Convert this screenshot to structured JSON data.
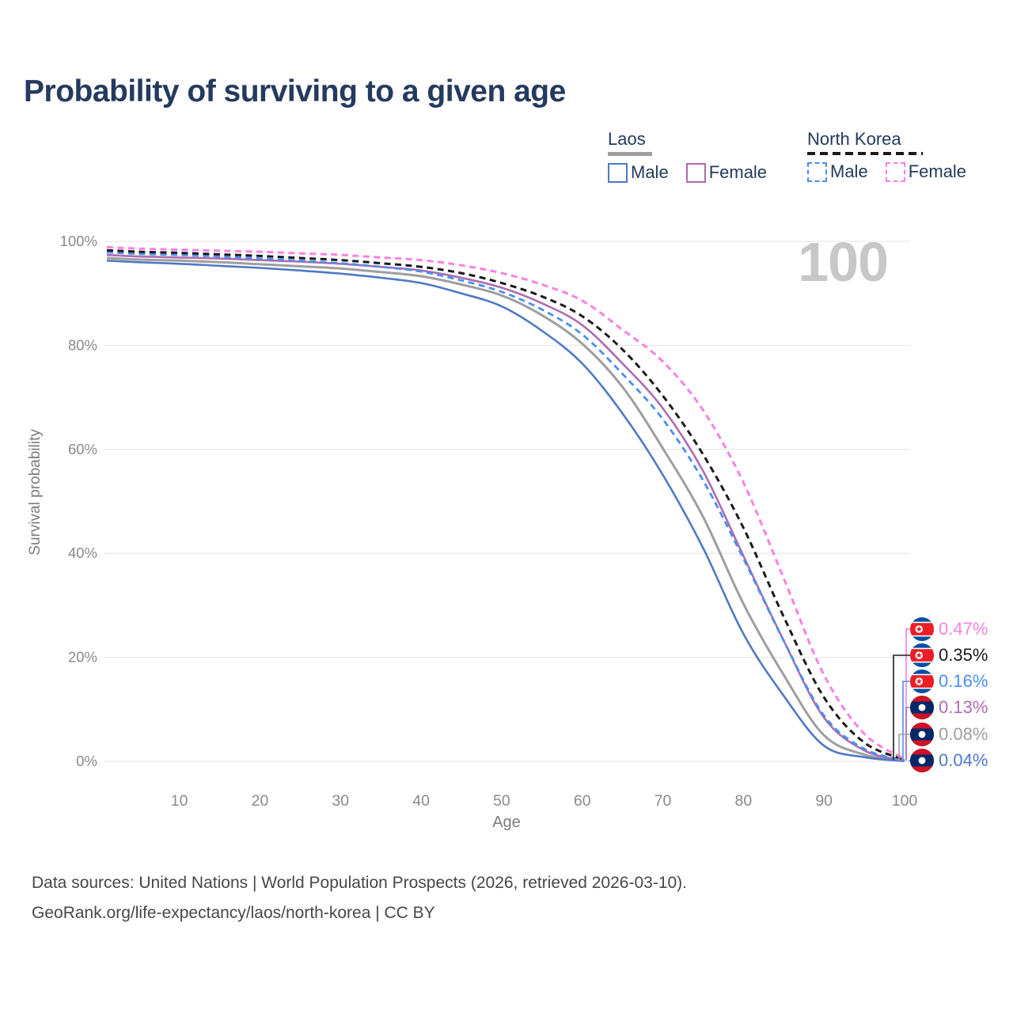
{
  "title": "Probability of surviving to a given age",
  "watermark_age": "100",
  "legend": {
    "groups": [
      {
        "label": "Laos",
        "underline_style": "solid",
        "underline_color": "#9e9e9e",
        "items": [
          {
            "label": "Male",
            "color": "#4e79c5",
            "dashed": false
          },
          {
            "label": "Female",
            "color": "#ad6cb0",
            "dashed": false
          }
        ]
      },
      {
        "label": "North Korea",
        "underline_style": "dashed",
        "underline_color": "#1a1a1a",
        "items": [
          {
            "label": "Male",
            "color": "#4a8ff2",
            "dashed": true
          },
          {
            "label": "Female",
            "color": "#fb80e3",
            "dashed": true
          }
        ]
      }
    ]
  },
  "chart_data": {
    "type": "line",
    "title": "Probability of surviving to a given age",
    "xlabel": "Age",
    "ylabel": "Survival probability",
    "xlim": [
      1,
      100
    ],
    "ylim": [
      0,
      100
    ],
    "grid": "horizontal",
    "legend_position": "top-right",
    "x": [
      1,
      5,
      10,
      15,
      20,
      25,
      30,
      35,
      40,
      45,
      50,
      55,
      60,
      65,
      70,
      75,
      80,
      85,
      90,
      95,
      100
    ],
    "xticks": [
      10,
      20,
      30,
      40,
      50,
      60,
      70,
      80,
      90,
      100
    ],
    "yticks": [
      {
        "value": 0,
        "label": "0%"
      },
      {
        "value": 20,
        "label": "20%"
      },
      {
        "value": 40,
        "label": "40%"
      },
      {
        "value": 60,
        "label": "60%"
      },
      {
        "value": 80,
        "label": "80%"
      },
      {
        "value": 100,
        "label": "100%"
      }
    ],
    "series": [
      {
        "id": "nk-female",
        "name": "North Korea Female",
        "country": "North Korea",
        "sex": "female",
        "color": "#fb80e3",
        "dashed": true,
        "end_label": "0.47%",
        "values": [
          98.9,
          98.6,
          98.4,
          98.2,
          98.0,
          97.7,
          97.4,
          96.9,
          96.4,
          95.4,
          93.9,
          91.7,
          88.6,
          83.0,
          76.9,
          67.5,
          53.6,
          35.2,
          16.6,
          5.3,
          0.47
        ]
      },
      {
        "id": "nk-both",
        "name": "North Korea Both sexes",
        "country": "North Korea",
        "sex": "both",
        "color": "#1a1a1a",
        "dashed": true,
        "end_label": "0.35%",
        "values": [
          98.3,
          98.0,
          97.8,
          97.5,
          97.2,
          96.8,
          96.4,
          95.8,
          95.1,
          93.9,
          92.0,
          89.4,
          85.6,
          79.2,
          70.3,
          59.0,
          44.9,
          27.8,
          12.3,
          3.6,
          0.35
        ]
      },
      {
        "id": "nk-male",
        "name": "North Korea Male",
        "country": "North Korea",
        "sex": "male",
        "color": "#4a8ff2",
        "dashed": true,
        "end_label": "0.16%",
        "values": [
          97.9,
          97.6,
          97.4,
          97.1,
          96.7,
          96.3,
          95.8,
          95.1,
          94.2,
          92.5,
          90.3,
          86.9,
          82.1,
          74.5,
          65.8,
          54.0,
          39.0,
          23.2,
          8.8,
          2.4,
          0.16
        ]
      },
      {
        "id": "laos-female",
        "name": "Laos Female",
        "country": "Laos",
        "sex": "female",
        "color": "#ad6cb0",
        "dashed": false,
        "end_label": "0.13%",
        "values": [
          97.4,
          97.1,
          96.9,
          96.7,
          96.4,
          96.1,
          95.7,
          95.1,
          94.4,
          93.0,
          91.1,
          88.1,
          83.9,
          76.5,
          67.9,
          55.8,
          39.5,
          23.2,
          8.4,
          2.1,
          0.13
        ]
      },
      {
        "id": "laos-both",
        "name": "Laos Both sexes",
        "country": "Laos",
        "sex": "both",
        "color": "#9e9e9e",
        "dashed": false,
        "end_label": "0.08%",
        "values": [
          96.8,
          96.5,
          96.3,
          96.0,
          95.6,
          95.2,
          94.8,
          94.1,
          93.3,
          91.7,
          89.6,
          85.8,
          80.3,
          72.0,
          60.2,
          47.0,
          30.3,
          16.6,
          5.0,
          1.3,
          0.08
        ]
      },
      {
        "id": "laos-male",
        "name": "Laos Male",
        "country": "Laos",
        "sex": "male",
        "color": "#4e79c5",
        "dashed": false,
        "end_label": "0.04%",
        "values": [
          96.3,
          96.0,
          95.7,
          95.3,
          94.9,
          94.4,
          93.8,
          93.0,
          92.0,
          90.0,
          87.5,
          82.8,
          76.5,
          66.9,
          55.1,
          41.0,
          24.5,
          12.6,
          3.0,
          0.8,
          0.04
        ]
      }
    ]
  },
  "footer": {
    "line1": "Data sources: United Nations | World Population Prospects (2026, retrieved 2026-03-10).",
    "line2": "GeoRank.org/life-expectancy/laos/north-korea | CC BY"
  }
}
